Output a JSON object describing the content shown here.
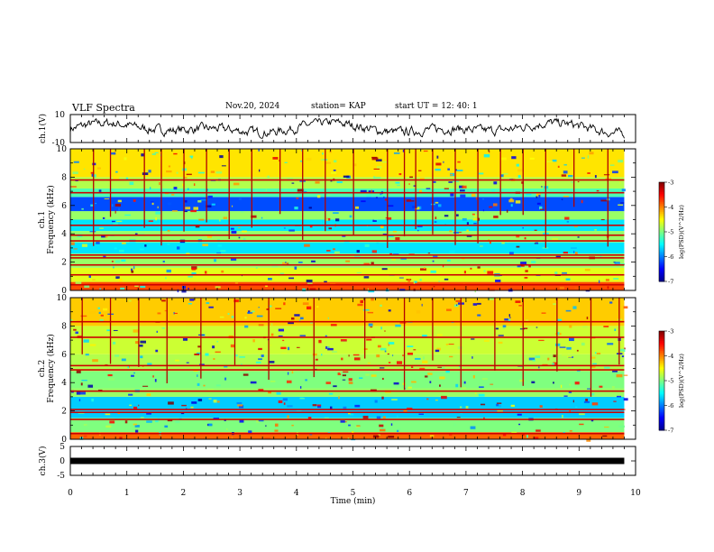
{
  "header": {
    "title": "VLF Spectra",
    "date": "Nov.20, 2024",
    "station": "station= KAP",
    "start_ut": "start  UT  =   12: 40: 1"
  },
  "chart_data": [
    {
      "type": "line",
      "panel": "waveform-ch1",
      "ylabel": "ch.1(V)",
      "ylim": [
        -10,
        10
      ],
      "yticks": [
        10,
        -10
      ],
      "xlim": [
        0,
        10
      ],
      "xmax_data": 9.8,
      "description_values": "noisy voltage trace centred near 0 V, amplitude roughly +/-5 V"
    },
    {
      "type": "heatmap",
      "panel": "spectrogram-ch1",
      "ylabel_top": "ch.1",
      "ylabel": "Frequency (kHz)",
      "ylim": [
        0,
        10
      ],
      "yticks": [
        0,
        2,
        4,
        6,
        8,
        10
      ],
      "xlim": [
        0,
        10
      ],
      "xmax_data": 9.8,
      "colorbar": {
        "label": "log(PSD)(V^2/Hz)",
        "range": [
          -7,
          -3
        ],
        "ticks": [
          -3,
          -4,
          -5,
          -6,
          -7
        ]
      },
      "bands": [
        {
          "f0": 0.0,
          "f1": 0.6,
          "level": -3.8
        },
        {
          "f0": 0.6,
          "f1": 1.6,
          "level": -4.6
        },
        {
          "f0": 1.6,
          "f1": 2.6,
          "level": -4.9
        },
        {
          "f0": 2.6,
          "f1": 3.4,
          "level": -5.6
        },
        {
          "f0": 3.4,
          "f1": 4.2,
          "level": -4.9
        },
        {
          "f0": 4.2,
          "f1": 5.0,
          "level": -5.6
        },
        {
          "f0": 5.0,
          "f1": 5.6,
          "level": -4.9
        },
        {
          "f0": 5.6,
          "f1": 6.6,
          "level": -6.2
        },
        {
          "f0": 6.6,
          "f1": 7.2,
          "level": -5.2
        },
        {
          "f0": 7.2,
          "f1": 8.0,
          "level": -4.8
        },
        {
          "f0": 8.0,
          "f1": 10.0,
          "level": -4.4
        }
      ],
      "lines_khz": [
        0.4,
        1.1,
        1.8,
        2.3,
        2.5,
        3.5,
        3.9,
        4.6,
        6.9,
        7.8
      ],
      "spikes_min": [
        0.4,
        0.7,
        1.3,
        1.6,
        2.0,
        2.4,
        2.8,
        3.2,
        3.7,
        4.1,
        4.5,
        5.0,
        5.6,
        5.9,
        6.1,
        6.4,
        6.8,
        7.2,
        7.6,
        8.0,
        8.4,
        8.9,
        9.5
      ]
    },
    {
      "type": "heatmap",
      "panel": "spectrogram-ch2",
      "ylabel_top": "ch.2",
      "ylabel": "Frequency (kHz)",
      "ylim": [
        0,
        10
      ],
      "yticks": [
        0,
        2,
        4,
        6,
        8,
        10
      ],
      "xlim": [
        0,
        10
      ],
      "xmax_data": 9.8,
      "colorbar": {
        "label": "log(PSD)(V^2/Hz)",
        "range": [
          -7,
          -3
        ],
        "ticks": [
          -3,
          -4,
          -5,
          -6,
          -7
        ]
      },
      "bands": [
        {
          "f0": 0.0,
          "f1": 0.5,
          "level": -3.9
        },
        {
          "f0": 0.5,
          "f1": 1.5,
          "level": -5.0
        },
        {
          "f0": 1.5,
          "f1": 3.0,
          "level": -5.7
        },
        {
          "f0": 3.0,
          "f1": 3.6,
          "level": -4.9
        },
        {
          "f0": 3.6,
          "f1": 4.8,
          "level": -5.0
        },
        {
          "f0": 4.8,
          "f1": 6.0,
          "level": -4.8
        },
        {
          "f0": 6.0,
          "f1": 8.0,
          "level": -4.7
        },
        {
          "f0": 8.0,
          "f1": 10.0,
          "level": -4.3
        }
      ],
      "lines_khz": [
        0.4,
        1.4,
        1.9,
        2.1,
        3.4,
        4.9,
        5.2,
        7.2,
        8.3
      ],
      "spikes_min": [
        0.2,
        0.7,
        1.2,
        1.7,
        2.3,
        2.9,
        3.5,
        4.3,
        5.2,
        5.9,
        6.4,
        6.9,
        7.5,
        8.0,
        8.6,
        9.2,
        9.7
      ]
    },
    {
      "type": "line",
      "panel": "waveform-ch3",
      "ylabel": "ch.3(V)",
      "ylim": [
        -5,
        5
      ],
      "yticks": [
        5,
        0,
        -5
      ],
      "xlim": [
        0,
        10
      ],
      "xmax_data": 9.8,
      "constant_value": 0
    }
  ],
  "xaxis": {
    "label": "Time  (min)",
    "ticks": [
      "0",
      "1",
      "2",
      "3",
      "4",
      "5",
      "6",
      "7",
      "8",
      "9",
      "10"
    ]
  },
  "colormap": [
    "#00008f",
    "#0000ff",
    "#007fff",
    "#00ffff",
    "#7fff7f",
    "#ffff00",
    "#ff7f00",
    "#ff0000",
    "#7f0000"
  ]
}
